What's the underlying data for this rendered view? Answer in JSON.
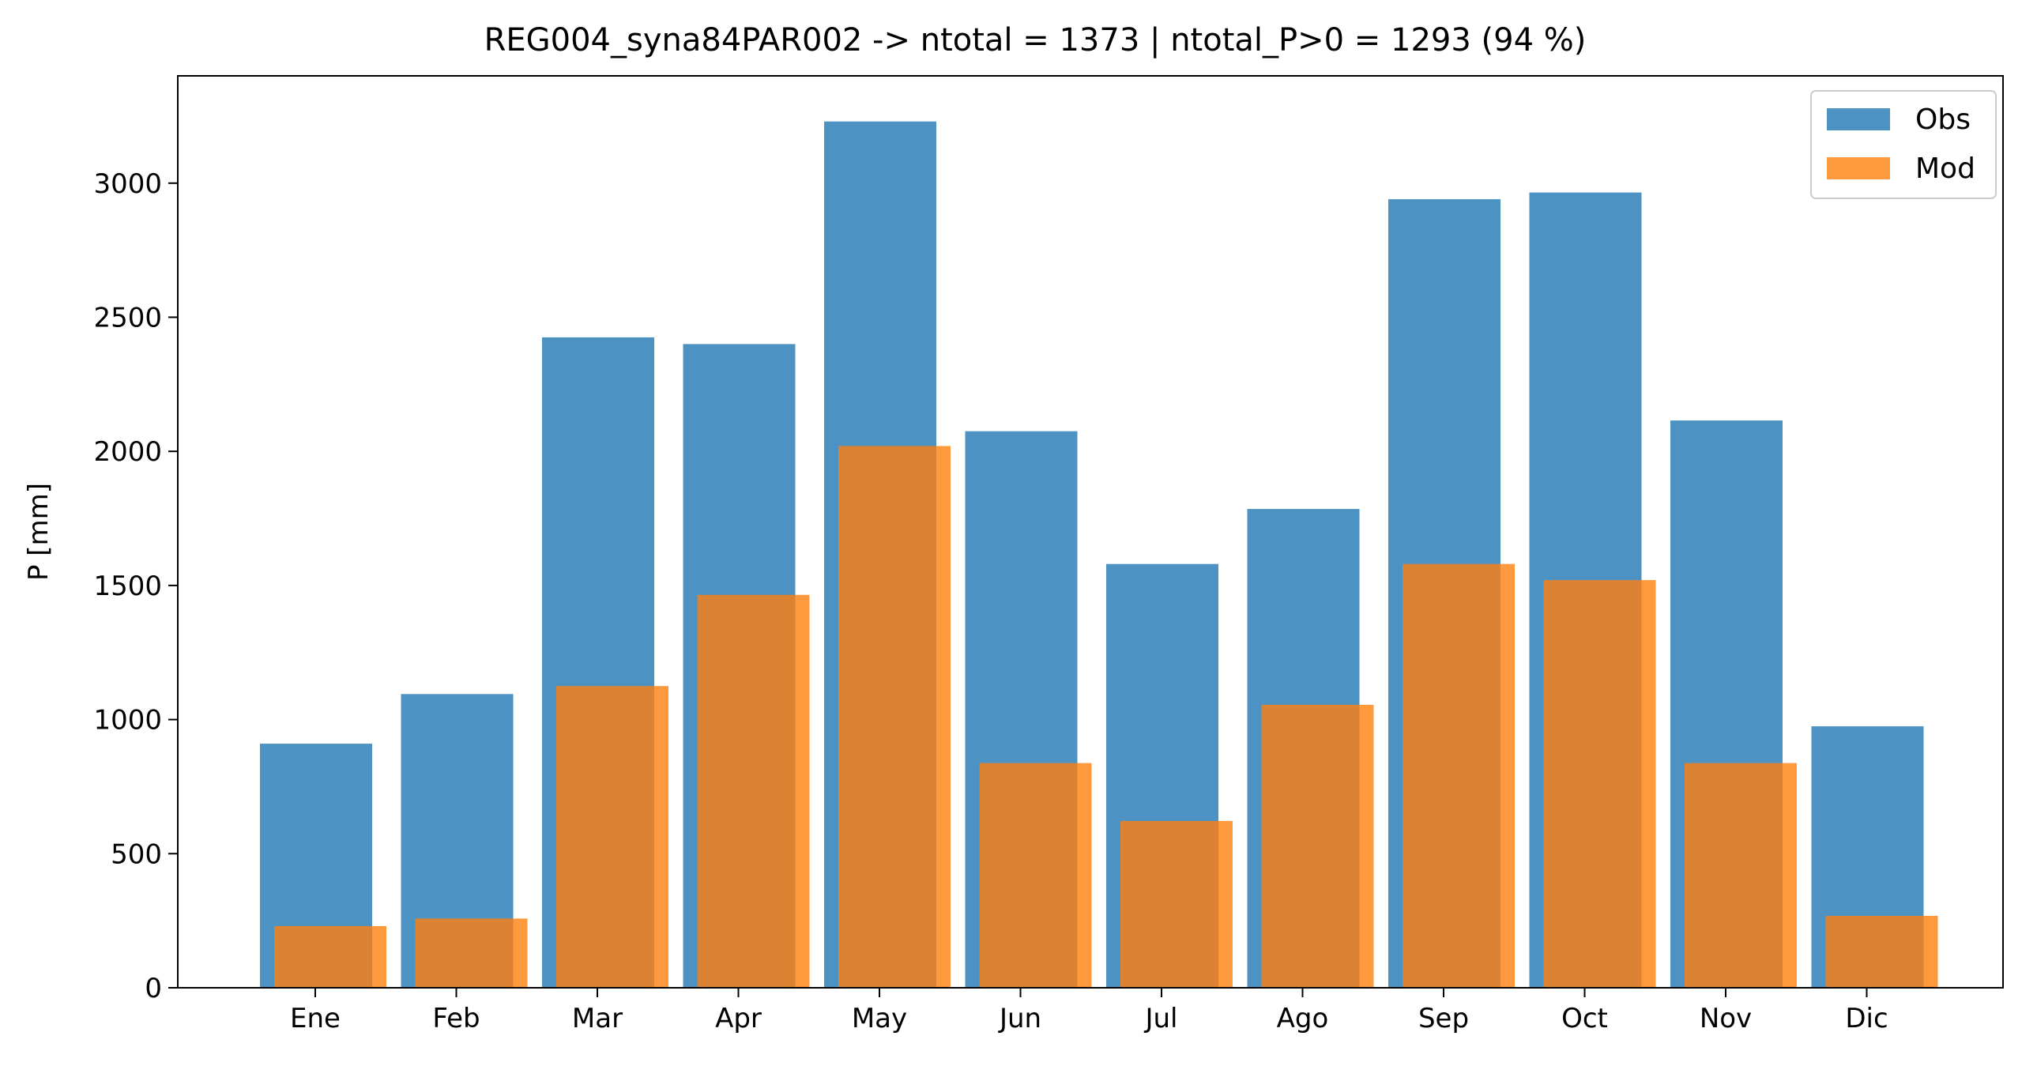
{
  "chart_data": {
    "type": "bar",
    "title": "REG004_syna84PAR002 -> ntotal = 1373 | ntotal_P>0 = 1293 (94 %)",
    "xlabel": "",
    "ylabel": "P [mm]",
    "ylim": [
      0,
      3400
    ],
    "yticks": [
      0,
      500,
      1000,
      1500,
      2000,
      2500,
      3000
    ],
    "categories": [
      "Ene",
      "Feb",
      "Mar",
      "Apr",
      "May",
      "Jun",
      "Jul",
      "Ago",
      "Sep",
      "Oct",
      "Nov",
      "Dic"
    ],
    "series": [
      {
        "name": "Obs",
        "color": "#1f77b4",
        "opacity": 0.8,
        "values": [
          910,
          1095,
          2425,
          2400,
          3230,
          2075,
          1580,
          1785,
          2940,
          2965,
          2115,
          975
        ]
      },
      {
        "name": "Mod",
        "color": "#ff7f0e",
        "opacity": 0.8,
        "values": [
          230,
          258,
          1125,
          1465,
          2020,
          838,
          622,
          1055,
          1580,
          1520,
          838,
          268
        ]
      }
    ],
    "grid": false,
    "legend_position": "top-right"
  }
}
